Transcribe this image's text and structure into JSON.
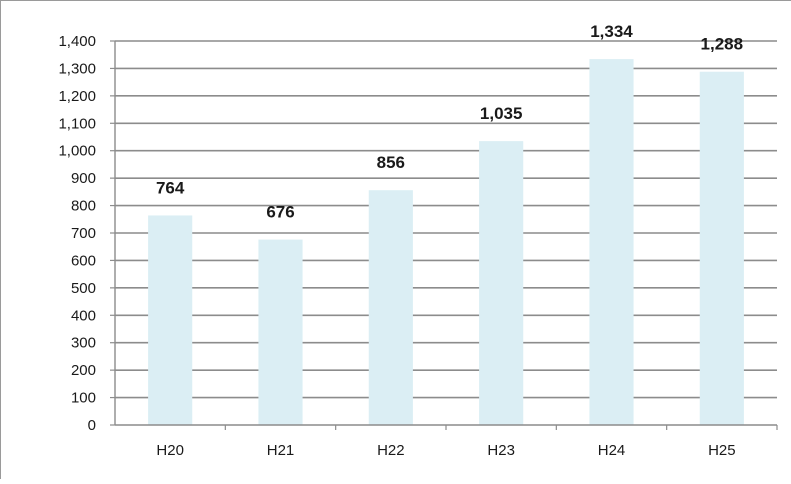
{
  "chart_data": {
    "type": "bar",
    "title": "",
    "xlabel": "",
    "ylabel": "",
    "categories": [
      "H20",
      "H21",
      "H22",
      "H23",
      "H24",
      "H25"
    ],
    "values": [
      764,
      676,
      856,
      1035,
      1334,
      1288
    ],
    "value_labels": [
      "764",
      "676",
      "856",
      "1,035",
      "1,334",
      "1,288"
    ],
    "ylim": [
      0,
      1400
    ],
    "ytick_step": 100,
    "yticks": [
      "0",
      "100",
      "200",
      "300",
      "400",
      "500",
      "600",
      "700",
      "800",
      "900",
      "1,000",
      "1,100",
      "1,200",
      "1,300",
      "1,400"
    ],
    "grid": true,
    "legend": "none",
    "colors": {
      "bar": "#dbeef4",
      "grid": "#8c8c8c",
      "axis": "#8c8c8c",
      "frame": "#9a9a9a"
    }
  }
}
